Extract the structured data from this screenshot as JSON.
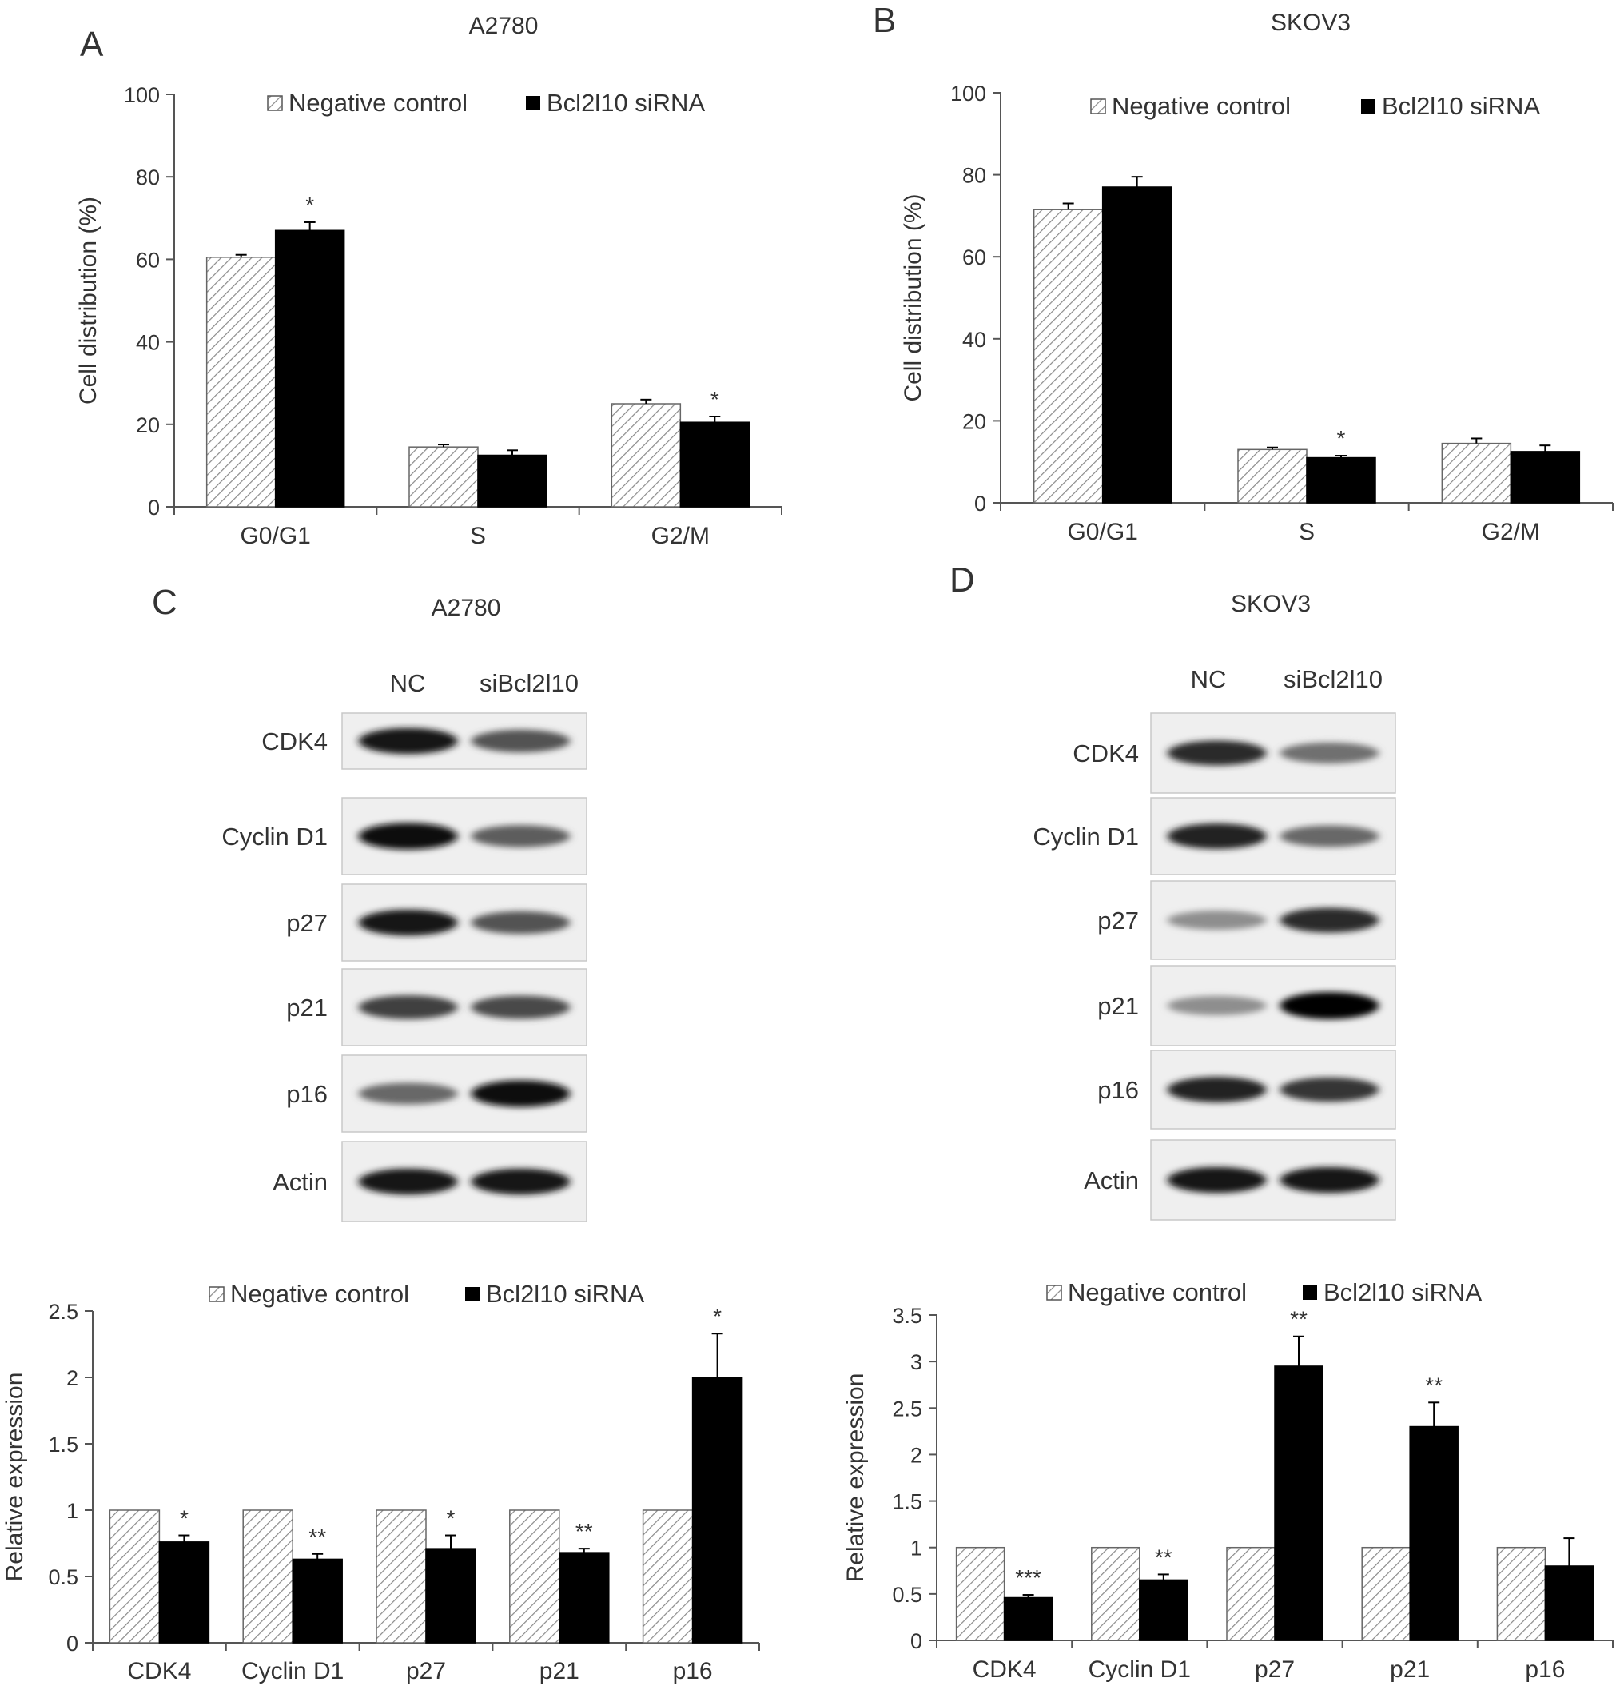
{
  "panels": {
    "A": {
      "letter": "A",
      "title": "A2780"
    },
    "B": {
      "letter": "B",
      "title": "SKOV3"
    },
    "C": {
      "letter": "C",
      "title": "A2780"
    },
    "D": {
      "letter": "D",
      "title": "SKOV3"
    }
  },
  "legend": {
    "negative": "Negative control",
    "sirna": "Bcl2l10 siRNA"
  },
  "blots": {
    "C": {
      "lanes": [
        "NC",
        "siBcl2l10"
      ],
      "proteins": [
        "CDK4",
        "Cyclin D1",
        "p27",
        "p21",
        "p16",
        "Actin"
      ],
      "intensity": [
        [
          0.9,
          0.6
        ],
        [
          0.95,
          0.55
        ],
        [
          0.9,
          0.6
        ],
        [
          0.7,
          0.65
        ],
        [
          0.5,
          0.95
        ],
        [
          0.9,
          0.9
        ]
      ]
    },
    "D": {
      "lanes": [
        "NC",
        "siBcl2l10"
      ],
      "proteins": [
        "CDK4",
        "Cyclin D1",
        "p27",
        "p21",
        "p16",
        "Actin"
      ],
      "intensity": [
        [
          0.8,
          0.45
        ],
        [
          0.85,
          0.5
        ],
        [
          0.3,
          0.8
        ],
        [
          0.3,
          1.0
        ],
        [
          0.85,
          0.75
        ],
        [
          0.9,
          0.9
        ]
      ]
    }
  },
  "colors": {
    "negative_hatch": "#888888",
    "sirna": "#000000"
  },
  "chart_data": [
    {
      "id": "A",
      "type": "bar",
      "title": "A2780",
      "categories": [
        "G0/G1",
        "S",
        "G2/M"
      ],
      "ylabel": "Cell distribution (%)",
      "ylim": [
        0,
        100
      ],
      "yticks": [
        "0",
        "20",
        "40",
        "60",
        "80",
        "100"
      ],
      "series": [
        {
          "name": "Negative control",
          "values": [
            60.5,
            14.5,
            25
          ],
          "errors": [
            0.6,
            0.6,
            1.0
          ]
        },
        {
          "name": "Bcl2l10 siRNA",
          "values": [
            67,
            12.5,
            20.5
          ],
          "errors": [
            2.0,
            1.2,
            1.4
          ]
        }
      ],
      "significance": [
        "*",
        "",
        "*"
      ]
    },
    {
      "id": "B",
      "type": "bar",
      "title": "SKOV3",
      "categories": [
        "G0/G1",
        "S",
        "G2/M"
      ],
      "ylabel": "Cell distribution (%)",
      "ylim": [
        0,
        100
      ],
      "yticks": [
        "0",
        "20",
        "40",
        "60",
        "80",
        "100"
      ],
      "series": [
        {
          "name": "Negative control",
          "values": [
            71.5,
            13,
            14.5
          ],
          "errors": [
            1.5,
            0.5,
            1.2
          ]
        },
        {
          "name": "Bcl2l10 siRNA",
          "values": [
            77,
            11,
            12.5
          ],
          "errors": [
            2.5,
            0.5,
            1.5
          ]
        }
      ],
      "significance": [
        "",
        "*",
        ""
      ]
    },
    {
      "id": "C",
      "type": "bar",
      "categories": [
        "CDK4",
        "Cyclin D1",
        "p27",
        "p21",
        "p16"
      ],
      "ylabel": "Relative expression",
      "ylim": [
        0,
        2.5
      ],
      "yticks": [
        "0",
        "0.5",
        "1",
        "1.5",
        "2",
        "2.5"
      ],
      "series": [
        {
          "name": "Negative control",
          "values": [
            1,
            1,
            1,
            1,
            1
          ],
          "errors": [
            0,
            0,
            0,
            0,
            0
          ]
        },
        {
          "name": "Bcl2l10 siRNA",
          "values": [
            0.76,
            0.63,
            0.71,
            0.68,
            2.0
          ],
          "errors": [
            0.05,
            0.04,
            0.1,
            0.03,
            0.33
          ]
        }
      ],
      "significance": [
        "*",
        "**",
        "*",
        "**",
        "*"
      ]
    },
    {
      "id": "D",
      "type": "bar",
      "categories": [
        "CDK4",
        "Cyclin D1",
        "p27",
        "p21",
        "p16"
      ],
      "ylabel": "Relative expression",
      "ylim": [
        0,
        3.5
      ],
      "yticks": [
        "0",
        "0.5",
        "1",
        "1.5",
        "2",
        "2.5",
        "3",
        "3.5"
      ],
      "series": [
        {
          "name": "Negative control",
          "values": [
            1,
            1,
            1,
            1,
            1
          ],
          "errors": [
            0,
            0,
            0,
            0,
            0
          ]
        },
        {
          "name": "Bcl2l10 siRNA",
          "values": [
            0.46,
            0.65,
            2.95,
            2.3,
            0.8
          ],
          "errors": [
            0.03,
            0.06,
            0.32,
            0.26,
            0.3
          ]
        }
      ],
      "significance": [
        "***",
        "**",
        "**",
        "**",
        ""
      ]
    }
  ]
}
